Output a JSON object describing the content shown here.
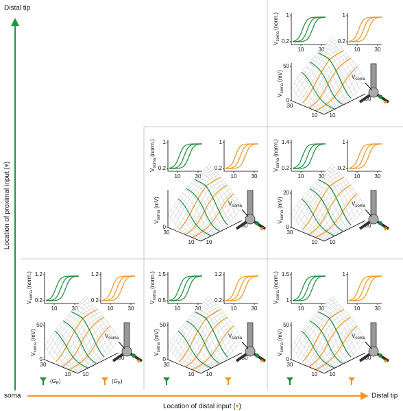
{
  "axes": {
    "y_top": "Distal tip",
    "y_label": "Location of proximal input (",
    "y_label_end": ")",
    "x_left": "soma",
    "x_label": "Location of distal input (",
    "x_label_end": ")",
    "x_right": "Distal tip"
  },
  "labels": {
    "v": "V",
    "soma": "soma",
    "norm": "(norm.)",
    "mv": "(mV)",
    "g": "G",
    "e": "E",
    "open": "(",
    "close": ")"
  },
  "panels": [
    {
      "green_yticks": [
        1,
        0.2
      ],
      "orange_yticks": [
        1,
        0.2
      ],
      "xticks": [
        10,
        30
      ],
      "z_ticks": [
        50,
        0
      ],
      "floor_ticks": [
        30,
        10,
        10,
        30
      ]
    },
    {
      "green_yticks": [
        1,
        0.2
      ],
      "orange_yticks": [
        1,
        0.2
      ],
      "xticks": [
        10,
        30
      ],
      "z_ticks": [
        0
      ],
      "floor_ticks": [
        30,
        10,
        10,
        30
      ]
    },
    {
      "green_yticks": [
        1.4,
        0.2
      ],
      "orange_yticks": [
        1,
        0.2
      ],
      "xticks": [
        10,
        30
      ],
      "z_ticks": [
        20,
        0
      ],
      "floor_ticks": [
        30,
        10,
        10,
        30
      ]
    },
    {
      "green_yticks": [
        1.2,
        0.2
      ],
      "orange_yticks": [
        1.2,
        0.2
      ],
      "xticks": [
        10,
        30
      ],
      "z_ticks": [
        50,
        0
      ],
      "floor_ticks": [
        30,
        10,
        10,
        30
      ]
    },
    {
      "green_yticks": [
        1.5,
        0.5
      ],
      "orange_yticks": [
        1.2,
        0.2
      ],
      "xticks": [
        10,
        30
      ],
      "z_ticks": [
        50,
        0
      ],
      "floor_ticks": [
        30,
        10,
        10,
        30
      ]
    },
    {
      "green_yticks": [
        1.5,
        1
      ],
      "orange_yticks": [
        1
      ],
      "xticks": [
        10,
        30
      ],
      "z_ticks": [
        50,
        0
      ],
      "floor_ticks": [
        30,
        10,
        10,
        30
      ]
    }
  ]
}
